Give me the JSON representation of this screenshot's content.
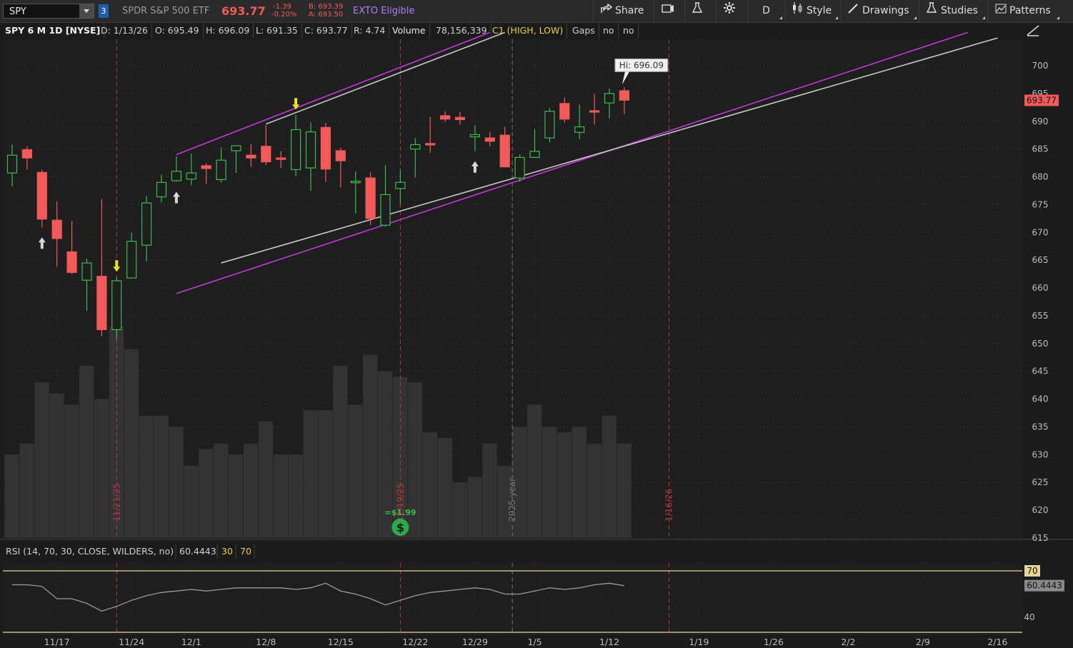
{
  "toolbar": {
    "symbol": "SPY",
    "badge": "3",
    "name": "SPDR S&P 500 ETF",
    "last": "693.77",
    "change": "-1.39",
    "change_pct": "-0.20%",
    "bid": "B: 693.39",
    "ask": "A: 693.50",
    "exto": "EXTO Eligible",
    "share": "Share",
    "period": "D",
    "style": "Style",
    "drawings": "Drawings",
    "studies": "Studies",
    "patterns": "Patterns"
  },
  "infobar": {
    "title": "SPY 6 M 1D [NYSE]",
    "date": "D: 1/13/26",
    "open": "O: 695.49",
    "high": "H: 696.09",
    "low": "L: 691.35",
    "close": "C: 693.77",
    "range": "R: 4.74",
    "volume_label": "Volume",
    "volume": "78,156,339",
    "c1": "C1 (HIGH, LOW)",
    "gaps": "Gaps",
    "no1": "no",
    "no2": "no"
  },
  "chart_data": {
    "type": "candlestick",
    "x_ticks": [
      "11/17",
      "11/24",
      "12/1",
      "12/8",
      "12/15",
      "12/22",
      "12/29",
      "1/5",
      "1/12",
      "1/19",
      "1/26",
      "2/2",
      "2/9",
      "2/16"
    ],
    "y_ticks": [
      615,
      620,
      625,
      630,
      635,
      640,
      645,
      650,
      655,
      660,
      665,
      670,
      675,
      680,
      685,
      690,
      695,
      700
    ],
    "ylim": [
      615,
      702
    ],
    "last_price_label": "693.77",
    "hi_callout": "Hi: 696.09",
    "dates": [
      "11/12",
      "11/13",
      "11/14",
      "11/17",
      "11/18",
      "11/19",
      "11/20",
      "11/21",
      "11/24",
      "11/25",
      "11/26",
      "11/28",
      "12/1",
      "12/2",
      "12/3",
      "12/4",
      "12/5",
      "12/8",
      "12/9",
      "12/10",
      "12/11",
      "12/12",
      "12/15",
      "12/16",
      "12/17",
      "12/18",
      "12/19",
      "12/22",
      "12/23",
      "12/24",
      "12/26",
      "12/29",
      "12/30",
      "12/31",
      "1/2",
      "1/5",
      "1/6",
      "1/7",
      "1/8",
      "1/9",
      "1/12",
      "1/13"
    ],
    "open": [
      680.7,
      684.9,
      680.8,
      672.2,
      666.5,
      661.4,
      662.1,
      652.5,
      661.8,
      667.7,
      676.4,
      679.3,
      679.6,
      682.0,
      679.5,
      684.7,
      683.9,
      685.5,
      683.4,
      681.3,
      681.6,
      688.9,
      684.7,
      679.2,
      679.8,
      671.3,
      677.9,
      685.0,
      686.0,
      691.0,
      690.7,
      687.2,
      687.0,
      687.5,
      679.8,
      683.5,
      687.0,
      693.2,
      688.0,
      691.9,
      693.3,
      695.5
    ],
    "high": [
      685.8,
      685.5,
      681.3,
      675.6,
      672.1,
      665.3,
      676.0,
      661.9,
      669.9,
      676.6,
      680.4,
      683.7,
      684.2,
      682.4,
      685.3,
      685.2,
      685.9,
      689.3,
      684.6,
      691.1,
      689.8,
      689.7,
      685.2,
      681.0,
      680.8,
      682.1,
      681.2,
      687.0,
      690.8,
      691.8,
      691.7,
      689.3,
      688.1,
      689.0,
      684.0,
      688.6,
      692.4,
      694.3,
      693.0,
      695.0,
      695.9,
      696.1
    ],
    "low": [
      678.3,
      681.3,
      670.9,
      663.8,
      662.5,
      655.9,
      651.3,
      650.8,
      661.9,
      664.8,
      675.4,
      679.1,
      678.5,
      678.7,
      679.0,
      680.7,
      681.8,
      682.1,
      681.6,
      680.1,
      677.5,
      679.1,
      678.1,
      673.4,
      671.3,
      671.0,
      675.0,
      679.9,
      684.3,
      689.9,
      689.4,
      684.6,
      685.5,
      681.7,
      679.1,
      683.4,
      686.2,
      689.8,
      686.8,
      689.4,
      690.5,
      691.3
    ],
    "close": [
      683.9,
      683.4,
      672.4,
      668.9,
      662.8,
      664.5,
      652.5,
      661.3,
      668.4,
      675.3,
      679.0,
      681.0,
      680.7,
      681.5,
      683.0,
      685.6,
      683.4,
      682.7,
      683.3,
      688.5,
      688.1,
      681.4,
      682.9,
      679.2,
      672.5,
      676.8,
      679.0,
      685.8,
      685.8,
      690.4,
      690.3,
      687.6,
      686.4,
      681.8,
      683.5,
      684.6,
      691.8,
      690.4,
      689.0,
      691.7,
      695.0,
      693.8
    ],
    "volume": [
      630,
      632,
      643,
      641,
      639,
      646,
      640,
      653,
      649,
      637,
      637,
      635,
      628,
      631,
      632,
      630,
      632,
      636,
      630,
      630,
      638,
      638,
      646,
      639,
      648,
      645,
      644,
      643,
      634,
      633,
      625,
      626,
      632,
      628,
      635,
      639,
      635,
      634,
      635,
      632,
      637,
      632
    ],
    "volume_axis_max": 653,
    "markers": [
      {
        "type": "up-arrow",
        "index": 2
      },
      {
        "type": "down-arrow",
        "index": 7
      },
      {
        "type": "up-arrow",
        "index": 11
      },
      {
        "type": "down-arrow",
        "index": 19
      },
      {
        "type": "up-arrow",
        "index": 31
      }
    ],
    "dividend_label": "=$1.99",
    "event_lines": [
      {
        "date": "11/21/25",
        "color": "#b23a3a"
      },
      {
        "date": "12/19/25",
        "color": "#b23a3a"
      },
      {
        "date": "2025 year",
        "color": "#777777"
      },
      {
        "date": "1/16/26",
        "color": "#b23a3a"
      }
    ],
    "trendlines": [
      {
        "name": "upper-magenta",
        "color": "#c23ad6",
        "p1": [
          "11/28",
          684.0
        ],
        "p2": [
          "12/30",
          706.0
        ]
      },
      {
        "name": "upper-gray",
        "color": "#c8c8c8",
        "p1": [
          "12/8",
          689.5
        ],
        "p2": [
          "12/31",
          706.0
        ]
      },
      {
        "name": "lower-magenta",
        "color": "#c23ad6",
        "p1": [
          "11/28",
          659.0
        ],
        "p2": [
          "2/12",
          706.0
        ]
      },
      {
        "name": "lower-gray",
        "color": "#c8c8c8",
        "p1": [
          "12/3",
          664.5
        ],
        "p2": [
          "2/16",
          705.0
        ]
      }
    ],
    "rsi": {
      "label": "RSI (14, 70, 30, CLOSE, WILDERS, no)",
      "value": "60.4443",
      "overbought": "70",
      "oversold": "30",
      "tick_40": "40",
      "values": [
        61,
        61,
        60,
        52,
        52,
        49,
        44,
        47,
        51,
        54,
        56,
        57,
        58,
        57,
        58,
        59,
        59,
        59,
        59,
        58,
        59,
        62,
        57,
        55,
        52,
        48,
        51,
        54,
        56,
        57,
        58,
        59,
        58,
        55,
        55,
        57,
        59,
        58,
        59,
        61,
        62,
        60.4
      ]
    }
  }
}
